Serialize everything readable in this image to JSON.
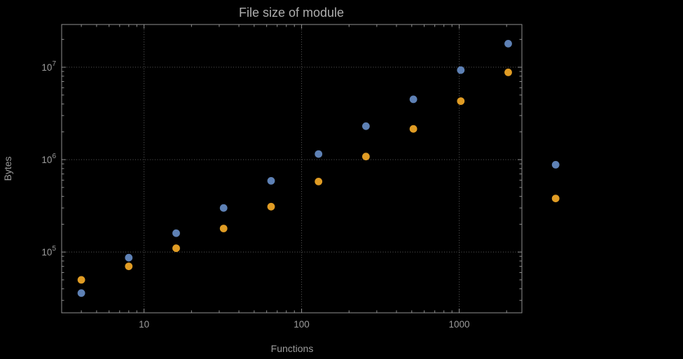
{
  "colors": {
    "background": "#000000",
    "frame": "#909090",
    "grid": "#5c5c5c",
    "text": "#9c9c9c"
  },
  "chart_data": {
    "type": "scatter",
    "title": "File size of module",
    "xlabel": "Functions",
    "ylabel": "Bytes",
    "x_scale": "log",
    "y_scale": "log",
    "xlim": [
      3,
      2500
    ],
    "ylim": [
      22000,
      29000000
    ],
    "grid": true,
    "grid_style": "dotted",
    "frame": true,
    "legend": "none",
    "x_ticks": [
      {
        "label": "10",
        "value": 10
      },
      {
        "label": "100",
        "value": 100
      },
      {
        "label": "1000",
        "value": 1000
      }
    ],
    "y_ticks": [
      {
        "base": "10",
        "exp": "5",
        "value": 100000
      },
      {
        "base": "10",
        "exp": "6",
        "value": 1000000
      },
      {
        "base": "10",
        "exp": "7",
        "value": 10000000
      }
    ],
    "series": [
      {
        "name": "blue-series",
        "color": "#5e81b5",
        "points": [
          [
            4,
            36000
          ],
          [
            8,
            87000
          ],
          [
            16,
            160000
          ],
          [
            32,
            300000
          ],
          [
            64,
            590000
          ],
          [
            128,
            1150000
          ],
          [
            256,
            2300000
          ],
          [
            512,
            4500000
          ],
          [
            1024,
            9300000
          ],
          [
            2048,
            18000000
          ],
          [
            4096,
            880000
          ]
        ]
      },
      {
        "name": "orange-series",
        "color": "#e09c24",
        "points": [
          [
            4,
            50000
          ],
          [
            8,
            70000
          ],
          [
            16,
            110000
          ],
          [
            32,
            180000
          ],
          [
            64,
            310000
          ],
          [
            128,
            580000
          ],
          [
            256,
            1080000
          ],
          [
            512,
            2150000
          ],
          [
            1024,
            4300000
          ],
          [
            2048,
            8800000
          ],
          [
            4096,
            380000
          ]
        ]
      }
    ]
  }
}
